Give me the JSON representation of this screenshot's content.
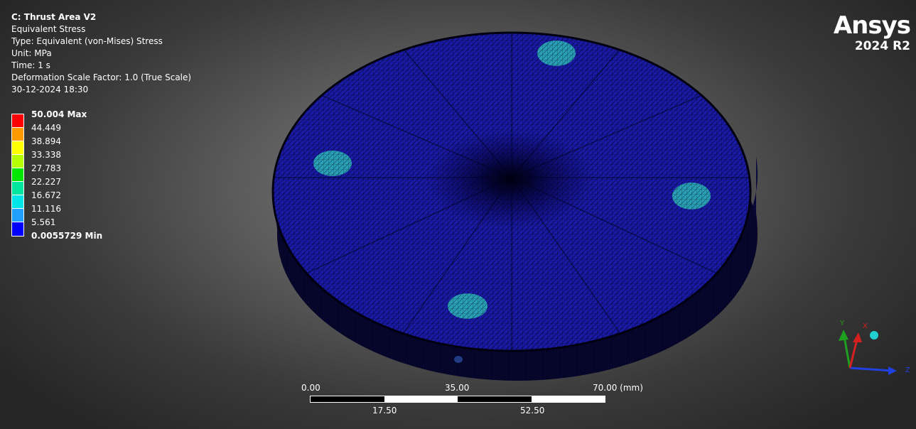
{
  "info": {
    "title": "C: Thrust Area V2",
    "result": "Equivalent Stress",
    "type": "Type: Equivalent (von-Mises) Stress",
    "unit": "Unit: MPa",
    "time": "Time: 1 s",
    "deformation": "Deformation Scale Factor: 1.0 (True Scale)",
    "datetime": "30-12-2024 18:30"
  },
  "legend": {
    "max_label": "50.004 Max",
    "min_label": "0.0055729 Min",
    "levels": [
      "44.449",
      "38.894",
      "33.338",
      "27.783",
      "22.227",
      "16.672",
      "11.116",
      "5.561"
    ],
    "colors": [
      "#ff0000",
      "#ff9900",
      "#ffff00",
      "#b4ff00",
      "#00e600",
      "#00e6a0",
      "#00e6e6",
      "#20a0ff",
      "#0000ff"
    ]
  },
  "brand": {
    "name": "Ansys",
    "version": "2024 R2"
  },
  "scale_bar": {
    "top_labels": [
      "0.00",
      "35.00",
      "70.00 (mm)"
    ],
    "bottom_labels": [
      "17.50",
      "52.50"
    ]
  },
  "triad": {
    "x": "X",
    "y": "Y",
    "z": "Z"
  },
  "colors": {
    "model_face": "#1a1aa8",
    "model_side": "#0a0a38",
    "mesh": "#000000",
    "hotspot": "#2aa0b8",
    "axis_x": "#d42020",
    "axis_y": "#1ea01e",
    "axis_z": "#2040e0"
  }
}
